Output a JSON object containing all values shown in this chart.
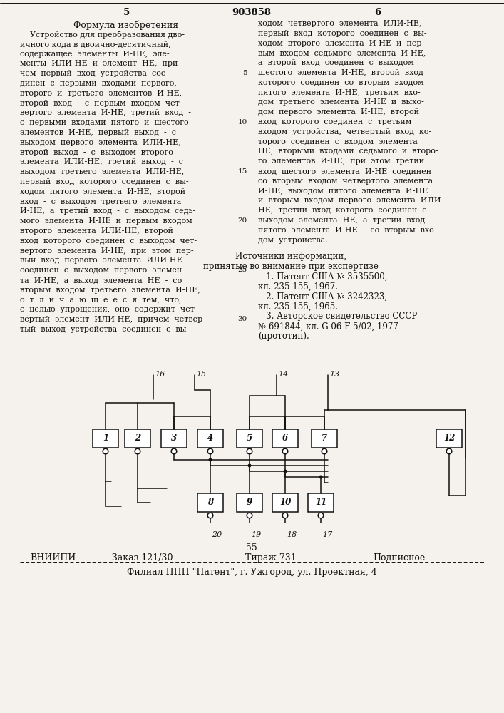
{
  "page_number_left": "5",
  "page_number_center": "903858",
  "page_number_right": "6",
  "section_title": "Формула изобретения",
  "left_text_lines": [
    "    Устройство для преобразования дво-",
    "ичного кода в двоично-десятичный,",
    "содержащее  элементы  И-НЕ,  эле-",
    "менты  ИЛИ-НЕ  и  элемент  НЕ,  при-",
    "чем  первый  вход  устройства  сое-",
    "динен  с  первыми  входами  первого,",
    "второго  и  третьего  элементов  И-НЕ,",
    "второй  вход  -  с  первым  входом  чет-",
    "вертого  элемента  И-НЕ,  третий  вход  -",
    "с  первыми  входами  пятого  и  шестого",
    "элементов  И-НЕ,  первый  выход  -  с",
    "выходом  первого  элемента  ИЛИ-НЕ,",
    "второй  выход  -  с  выходом  второго",
    "элемента  ИЛИ-НЕ,  третий  выход  -  с",
    "выходом  третьего  элемента  ИЛИ-НЕ,",
    "первый  вход  которого  соединен  с  вы-",
    "ходом  пятого  элемента  И-НЕ,  второй",
    "вход  -  с  выходом  третьего  элемента",
    "И-НЕ,  а  третий  вход  -  с  выходом  седь-",
    "мого  элемента  И-НЕ  и  первым  входом",
    "второго  элемента  ИЛИ-НЕ,  второй",
    "вход  которого  соединен  с  выходом  чет-",
    "вертого  элемента  И-НЕ,  при  этом  пер-",
    "вый  вход  первого  элемента  ИЛИ-НЕ",
    "соединен  с  выходом  первого  элемен-",
    "та  И-НЕ,  а  выход  элемента  НЕ  -  со",
    "вторым  входом  третьего  элемента  И-НЕ,",
    "о  т  л  и  ч  а  ю  щ  е  е  с  я  тем,  что,",
    "с  целью  упрощения,  оно  содержит  чет-",
    "вертый  элемент  ИЛИ-НЕ,  причем  четвер-",
    "тый  выход  устройства  соединен  с  вы-"
  ],
  "right_text_lines": [
    "ходом  четвертого  элемента  ИЛИ-НЕ,",
    "первый  вход  которого  соединен  с  вы-",
    "ходом  второго  элемента  И-НЕ  и  пер-",
    "вым  входом  седьмого  элемента  И-НЕ,",
    "а  второй  вход  соединен  с  выходом",
    "шестого  элемента  И-НЕ,  второй  вход",
    "которого  соединен  со  вторым  входом",
    "пятого  элемента  И-НЕ,  третьим  вхо-",
    "дом  третьего  элемента  И-НЕ  и  выхо-",
    "дом  первого  элемента  И-НЕ,  второй",
    "вход  которого  соединен  с  третьим",
    "входом  устройства,  четвертый  вход  ко-",
    "торого  соединен  с  входом  элемента",
    "НЕ,  вторыми  входами  седьмого  и  второ-",
    "го  элементов  И-НЕ,  при  этом  третий",
    "вход  шестого  элемента  И-НЕ  соединен",
    "со  вторым  входом  четвертого  элемента",
    "И-НЕ,  выходом  пятого  элемента  И-НЕ",
    "и  вторым  входом  первого  элемента  ИЛИ-",
    "НЕ,  третий  вход  которого  соединен  с",
    "выходом  элемента  НЕ,  а  третий  вход",
    "пятого  элемента  И-НЕ  -  со  вторым  вхо-",
    "дом  устройства."
  ],
  "sources_title": "Источники информации,",
  "sources_subtitle": "принятые во внимание при экспертизе",
  "sources_lines": [
    "   1. Патент США № 3535500,",
    "кл. 235-155, 1967.",
    "   2. Патент США № 3242323,",
    "кл. 235-155, 1965.",
    "   3. Авторское свидетельство СССР",
    "№ 691844, кл. G 06 F 5/02, 1977",
    "(прототип)."
  ],
  "page_num_bottom": "55",
  "footer_col1": "ВНИИПИ",
  "footer_col2": "Заказ 121/30",
  "footer_col3": "Тираж 731",
  "footer_col4": "Подписное",
  "footer_address": "Филиал ППП \"Патент\", г. Ужгород, ул. Проектная, 4",
  "bg_color": "#f5f2ed",
  "text_color": "#111111",
  "line_numbers_right": [
    "5",
    "10",
    "15",
    "20",
    "25",
    "30"
  ],
  "box_labels_top": [
    "1",
    "2",
    "3",
    "4",
    "5",
    "6",
    "7",
    "12"
  ],
  "box_labels_bot": [
    "8",
    "9",
    "10",
    "11"
  ],
  "top_input_labels": [
    "16",
    "15",
    "14",
    "13"
  ],
  "bot_output_labels": [
    "20",
    "19",
    "18",
    "17"
  ]
}
